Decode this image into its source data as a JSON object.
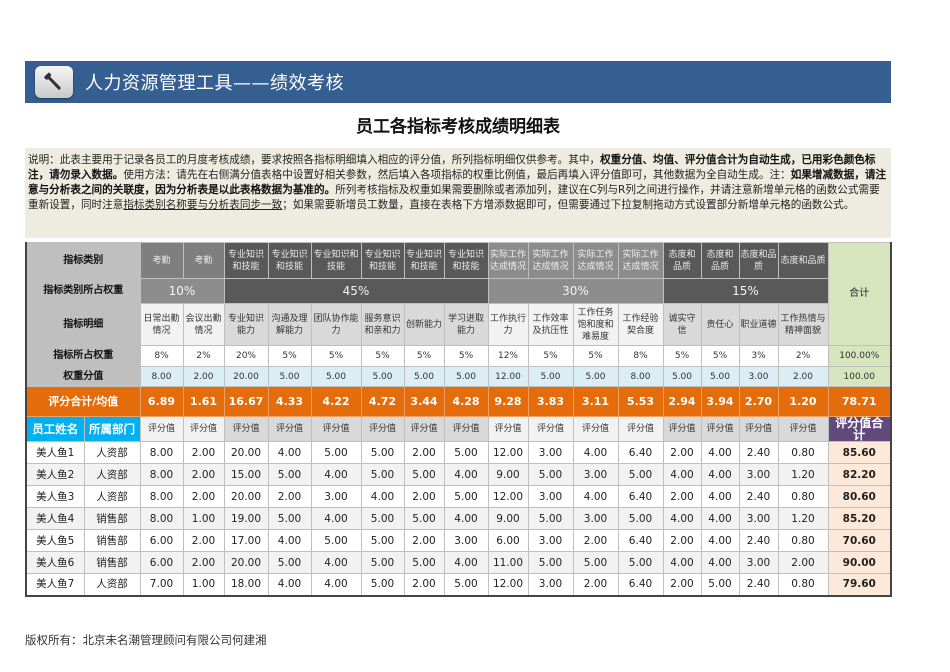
{
  "banner": {
    "icon": "wrench-icon",
    "title": "人力资源管理工具——绩效考核"
  },
  "page_title": "员工各指标考核成绩明细表",
  "description": {
    "p1": "说明：此表主要用于记录各员工的月度考核成绩，要求按照各指标明细填入相应的评分值，所列指标明细仅供参考。其中，",
    "b1": "权重分值、均值、评分值合计为自动生成，已用彩色颜色标注，请勿录入数据。",
    "p2": "使用方法：请先在右侧满分值表格中设置好相关参数，然后填入各项指标的权重比例值，最后再填入评分值即可，其他数据为全自动生成。注：",
    "b2": "如果增减数据，请注意与分析表之间的关联度，因为分析表是以此表格数据为基准的。",
    "p3": "所列考核指标及权重如果需要删除或者添加列，建议在C列与R列之间进行操作，并请注意新增单元格的函数公式需要重新设置，同时注意",
    "u1": "指标类别名称要与分析表同步一致",
    "p4": "；如果需要新增员工数量，直接在表格下方增添数据即可，但需要通过下拉复制拖动方式设置部分新增单元格的函数公式。"
  },
  "table": {
    "labels": {
      "category": "指标类别",
      "category_weight": "指标类别所占权重",
      "detail": "指标明细",
      "weight_pct": "指标所占权重",
      "weight_value": "权重分值",
      "avg": "评分合计/均值",
      "emp_name": "员工姓名",
      "dept": "所属部门",
      "total": "合计",
      "score_total": "评分值合计"
    },
    "categories": [
      "考勤",
      "考勤",
      "专业知识和技能",
      "专业知识和技能",
      "专业知识和技能",
      "专业知识和技能",
      "专业知识和技能",
      "专业知识和技能",
      "实际工作达成情况",
      "实际工作达成情况",
      "实际工作达成情况",
      "实际工作达成情况",
      "态度和品质",
      "态度和品质",
      "态度和品质",
      "态度和品质"
    ],
    "category_weights": [
      {
        "label": "10%",
        "span": 2
      },
      {
        "label": "45%",
        "span": 6
      },
      {
        "label": "30%",
        "span": 4
      },
      {
        "label": "15%",
        "span": 4
      }
    ],
    "details": [
      "日常出勤情况",
      "会议出勤情况",
      "专业知识能力",
      "沟通及理解能力",
      "团队协作能力",
      "服务意识和亲和力",
      "创新能力",
      "学习进取能力",
      "工作执行力",
      "工作效率及抗压性",
      "工作任务饱和度和难易度",
      "工作经验契合度",
      "诚实守信",
      "责任心",
      "职业道德",
      "工作热情与精神面貌"
    ],
    "weight_pcts": [
      "8%",
      "2%",
      "20%",
      "5%",
      "5%",
      "5%",
      "5%",
      "5%",
      "12%",
      "5%",
      "5%",
      "8%",
      "5%",
      "5%",
      "3%",
      "2%"
    ],
    "weight_pct_total": "100.00%",
    "weight_values": [
      "8.00",
      "2.00",
      "20.00",
      "5.00",
      "5.00",
      "5.00",
      "5.00",
      "5.00",
      "12.00",
      "5.00",
      "5.00",
      "8.00",
      "5.00",
      "5.00",
      "3.00",
      "2.00"
    ],
    "weight_value_total": "100.00",
    "averages": [
      "6.89",
      "1.61",
      "16.67",
      "4.33",
      "4.22",
      "4.72",
      "3.44",
      "4.28",
      "9.28",
      "3.83",
      "3.11",
      "5.53",
      "2.94",
      "3.94",
      "2.70",
      "1.20"
    ],
    "average_total": "78.71",
    "score_header": "评分值",
    "rows": [
      {
        "name": "美人鱼1",
        "dept": "人资部",
        "scores": [
          "8.00",
          "2.00",
          "20.00",
          "4.00",
          "5.00",
          "5.00",
          "2.00",
          "5.00",
          "12.00",
          "3.00",
          "4.00",
          "6.40",
          "2.00",
          "4.00",
          "2.40",
          "0.80"
        ],
        "total": "85.60"
      },
      {
        "name": "美人鱼2",
        "dept": "人资部",
        "scores": [
          "8.00",
          "2.00",
          "15.00",
          "5.00",
          "4.00",
          "5.00",
          "5.00",
          "4.00",
          "9.00",
          "5.00",
          "3.00",
          "5.00",
          "4.00",
          "4.00",
          "3.00",
          "1.20"
        ],
        "total": "82.20"
      },
      {
        "name": "美人鱼3",
        "dept": "人资部",
        "scores": [
          "8.00",
          "2.00",
          "20.00",
          "2.00",
          "3.00",
          "4.00",
          "2.00",
          "5.00",
          "12.00",
          "3.00",
          "4.00",
          "6.40",
          "2.00",
          "4.00",
          "2.40",
          "0.80"
        ],
        "total": "80.60"
      },
      {
        "name": "美人鱼4",
        "dept": "销售部",
        "scores": [
          "8.00",
          "1.00",
          "19.00",
          "5.00",
          "4.00",
          "5.00",
          "5.00",
          "4.00",
          "9.00",
          "5.00",
          "3.00",
          "5.00",
          "4.00",
          "4.00",
          "3.00",
          "1.20"
        ],
        "total": "85.20"
      },
      {
        "name": "美人鱼5",
        "dept": "销售部",
        "scores": [
          "6.00",
          "2.00",
          "17.00",
          "4.00",
          "5.00",
          "5.00",
          "2.00",
          "3.00",
          "6.00",
          "3.00",
          "2.00",
          "6.40",
          "2.00",
          "4.00",
          "2.40",
          "0.80"
        ],
        "total": "70.60"
      },
      {
        "name": "美人鱼6",
        "dept": "销售部",
        "scores": [
          "6.00",
          "2.00",
          "20.00",
          "5.00",
          "4.00",
          "5.00",
          "5.00",
          "4.00",
          "11.00",
          "5.00",
          "5.00",
          "5.00",
          "4.00",
          "4.00",
          "3.00",
          "2.00"
        ],
        "total": "90.00"
      },
      {
        "name": "美人鱼7",
        "dept": "人资部",
        "scores": [
          "7.00",
          "1.00",
          "18.00",
          "4.00",
          "4.00",
          "5.00",
          "2.00",
          "5.00",
          "12.00",
          "3.00",
          "2.00",
          "6.40",
          "2.00",
          "5.00",
          "2.40",
          "0.80"
        ],
        "total": "79.60"
      }
    ]
  },
  "colors": {
    "banner": "#365f91",
    "avg_row": "#e46c0a",
    "emp_header": "#00b0f0",
    "score_total_header": "#604a7b",
    "score_total_cell": "#fde9d9",
    "total_col": "#d7e4bd",
    "weight_value_row": "#daeef3"
  },
  "footer": "版权所有：北京未名潮管理顾问有限公司何建湘"
}
